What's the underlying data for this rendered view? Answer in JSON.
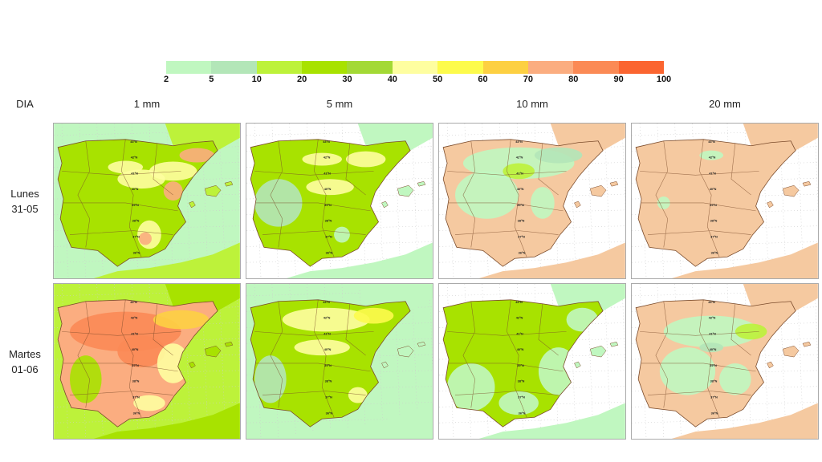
{
  "colorbar": {
    "ticks": [
      "2",
      "5",
      "10",
      "20",
      "30",
      "40",
      "50",
      "60",
      "70",
      "80",
      "90",
      "100"
    ],
    "colors": [
      "#c0f7c0",
      "#b3e6b8",
      "#bdf23a",
      "#a8e200",
      "#a3d935",
      "#fefea0",
      "#fdfb4c",
      "#fdd042",
      "#fbad80",
      "#fb8a55",
      "#fb6530"
    ]
  },
  "header": {
    "day_label": "DIA"
  },
  "columns": [
    "1 mm",
    "5 mm",
    "10 mm",
    "20 mm"
  ],
  "rows": [
    {
      "day": "Lunes",
      "date": "31-05"
    },
    {
      "day": "Martes",
      "date": "01-06"
    }
  ],
  "latitude_labels": [
    "43ºN",
    "42ºN",
    "41ºN",
    "40ºN",
    "39ºN",
    "38ºN",
    "37ºN",
    "36ºN"
  ],
  "colors": {
    "land_no_rain": "#f5c9a0",
    "sea": "#ffffff",
    "border": "#7a4a2a"
  }
}
